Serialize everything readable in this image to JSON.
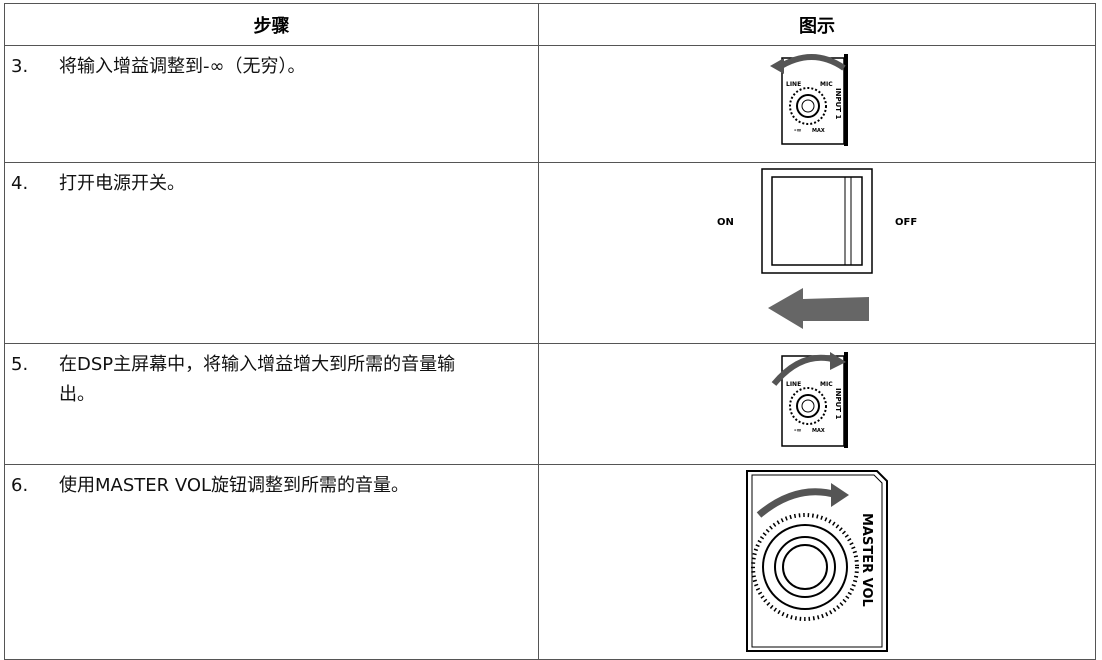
{
  "table": {
    "header": [
      "步骤",
      "图示"
    ],
    "rows": [
      {
        "number": "3.",
        "text": "将输入增益调整到-∞（无穷）。",
        "figure": {
          "labels": [
            "LINE",
            "MIC",
            "INPUT 1",
            "-∞",
            "MAX"
          ]
        }
      },
      {
        "number": "4.",
        "text": "打开电源开关。",
        "figure": {
          "labels": [
            "ON",
            "OFF"
          ]
        }
      },
      {
        "number": "5.",
        "text": "在DSP主屏幕中，将输入增益增大到所需的音量输出。",
        "figure": {
          "labels": [
            "LINE",
            "MIC",
            "INPUT 1",
            "-∞",
            "MAX"
          ]
        }
      },
      {
        "number": "6.",
        "text": "使用MASTER VOL旋钮调整到所需的音量。",
        "figure": {
          "labels": [
            "MASTER VOL"
          ]
        }
      }
    ]
  }
}
